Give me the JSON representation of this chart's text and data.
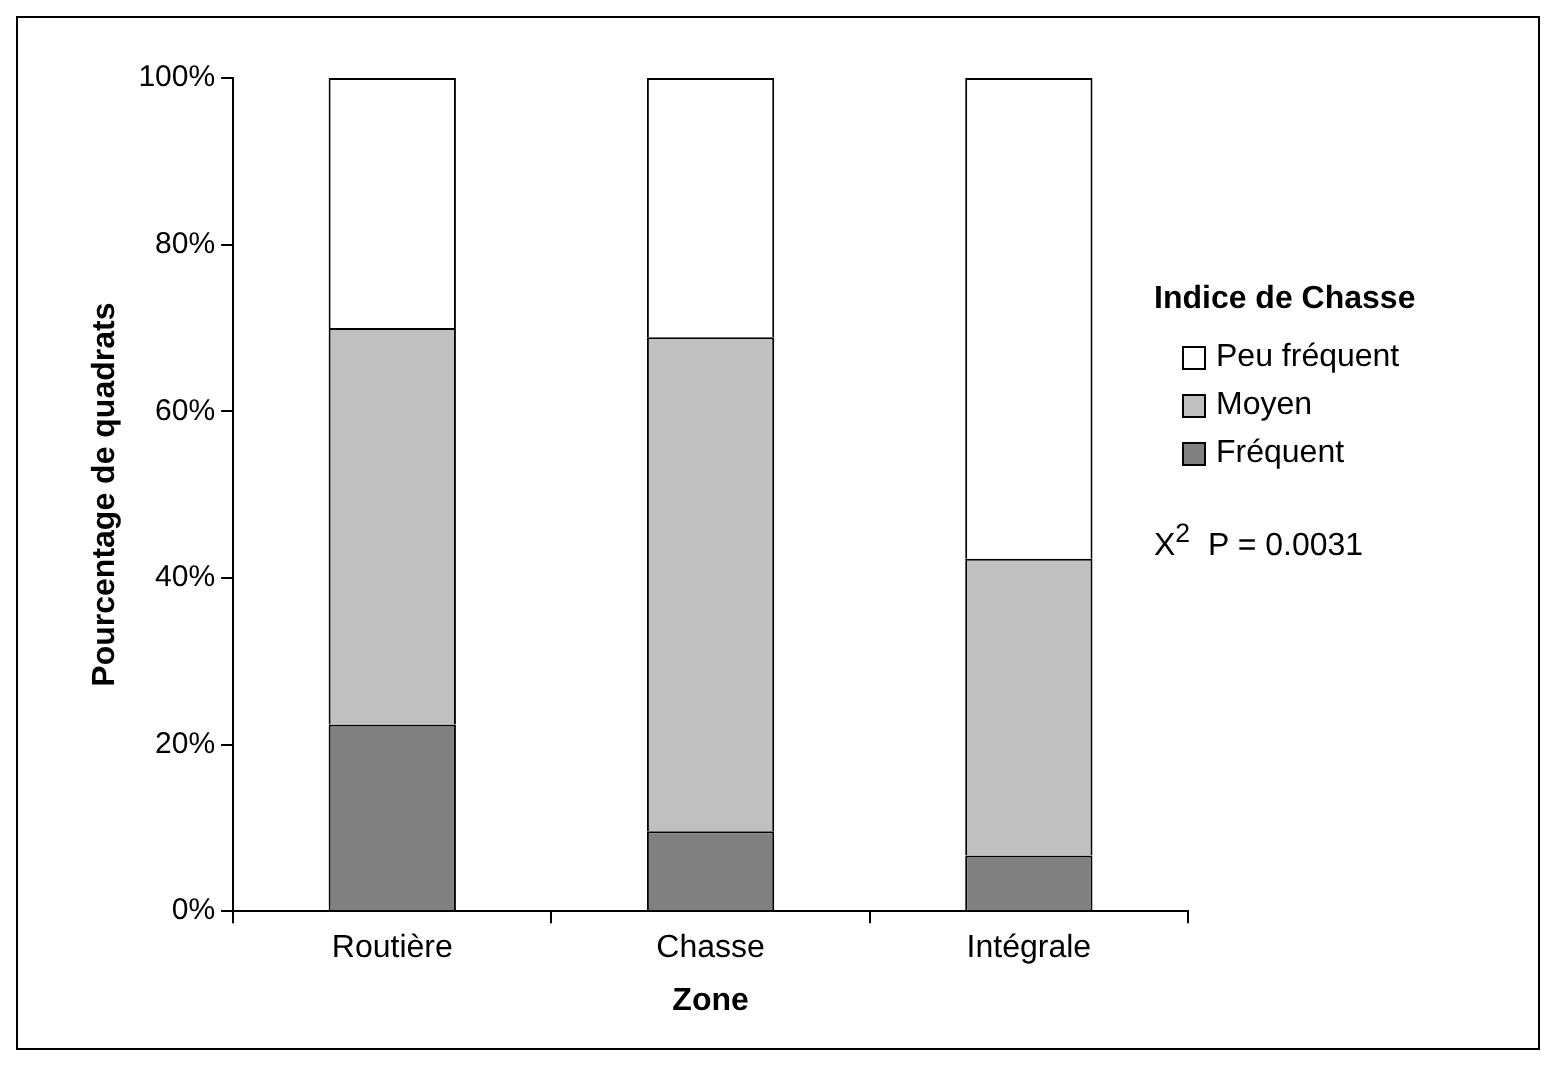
{
  "chart_data": {
    "type": "bar",
    "stacked": true,
    "xlabel": "Zone",
    "ylabel": "Pourcentage de quadrats",
    "legend_title": "Indice de Chasse",
    "legend": "right",
    "grid": false,
    "categories": [
      "Routière",
      "Chasse",
      "Intégrale"
    ],
    "series": [
      {
        "name": "Fréquent",
        "color": "#808080",
        "values": [
          22.4,
          9.6,
          6.7
        ]
      },
      {
        "name": "Moyen",
        "color": "#c0c0c0",
        "values": [
          47.6,
          59.3,
          35.6
        ]
      },
      {
        "name": "Peu fréquent",
        "color": "#ffffff",
        "values": [
          30.0,
          31.1,
          57.7
        ]
      }
    ],
    "ylim": [
      0,
      100
    ],
    "yticks": [
      {
        "value": 0,
        "label": "0%"
      },
      {
        "value": 20,
        "label": "20%"
      },
      {
        "value": 40,
        "label": "40%"
      },
      {
        "value": 60,
        "label": "60%"
      },
      {
        "value": 80,
        "label": "80%"
      },
      {
        "value": 100,
        "label": "100%"
      }
    ],
    "annotations": [
      "X$^{2}$  P = 0.0031"
    ]
  }
}
